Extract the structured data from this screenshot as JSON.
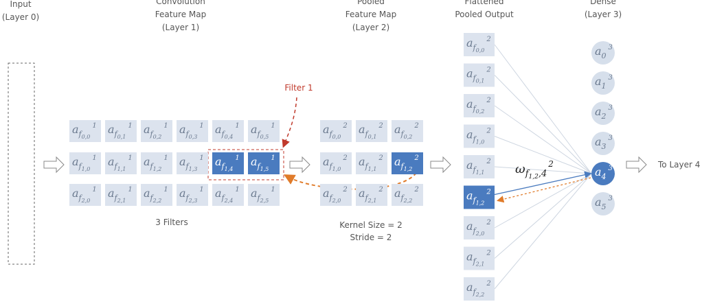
{
  "input": {
    "title": [
      "Input",
      "(Layer 0)"
    ]
  },
  "conv": {
    "title": [
      "Convolution",
      "Feature Map",
      "(Layer 1)"
    ],
    "symbol": "a",
    "sub": "f",
    "sup": "1",
    "cells": [
      [
        "0,0",
        "0,1",
        "0,2",
        "0,3",
        "0,4",
        "0,5"
      ],
      [
        "1,0",
        "1,1",
        "1,2",
        "1,3",
        "1,4",
        "1,5"
      ],
      [
        "2,0",
        "2,1",
        "2,2",
        "2,3",
        "2,4",
        "2,5"
      ]
    ],
    "highlighted": [
      [
        1,
        4
      ],
      [
        1,
        5
      ]
    ],
    "note": "3 Filters",
    "filter_label": "Filter 1"
  },
  "pooled": {
    "title": [
      "Pooled",
      "Feature Map",
      "(Layer 2)"
    ],
    "symbol": "a",
    "sub": "f",
    "sup": "2",
    "cells": [
      [
        "0,0",
        "0,1",
        "0,2"
      ],
      [
        "1,0",
        "1,1",
        "1,2"
      ],
      [
        "2,0",
        "2,1",
        "2,2"
      ]
    ],
    "highlighted": [
      [
        1,
        2
      ]
    ],
    "note": [
      "Kernel Size = 2",
      "Stride = 2"
    ]
  },
  "flattened": {
    "title": [
      "Flattened",
      "Pooled Output"
    ],
    "symbol": "a",
    "sub": "f",
    "sup": "2",
    "cells": [
      "0,0",
      "0,1",
      "0,2",
      "1,0",
      "1,1",
      "1,2",
      "2,0",
      "2,1",
      "2,2"
    ],
    "highlighted": 5
  },
  "dense": {
    "title": [
      "Dense",
      "(Layer 3)"
    ],
    "symbol": "a",
    "sup": "3",
    "cells": [
      "0",
      "1",
      "2",
      "3",
      "4",
      "5"
    ],
    "highlighted": 4
  },
  "weight": {
    "symbol": "ω",
    "sub": "f",
    "idx": "1,2",
    "target": ",4",
    "sup": "2"
  },
  "next": "To Layer 4"
}
